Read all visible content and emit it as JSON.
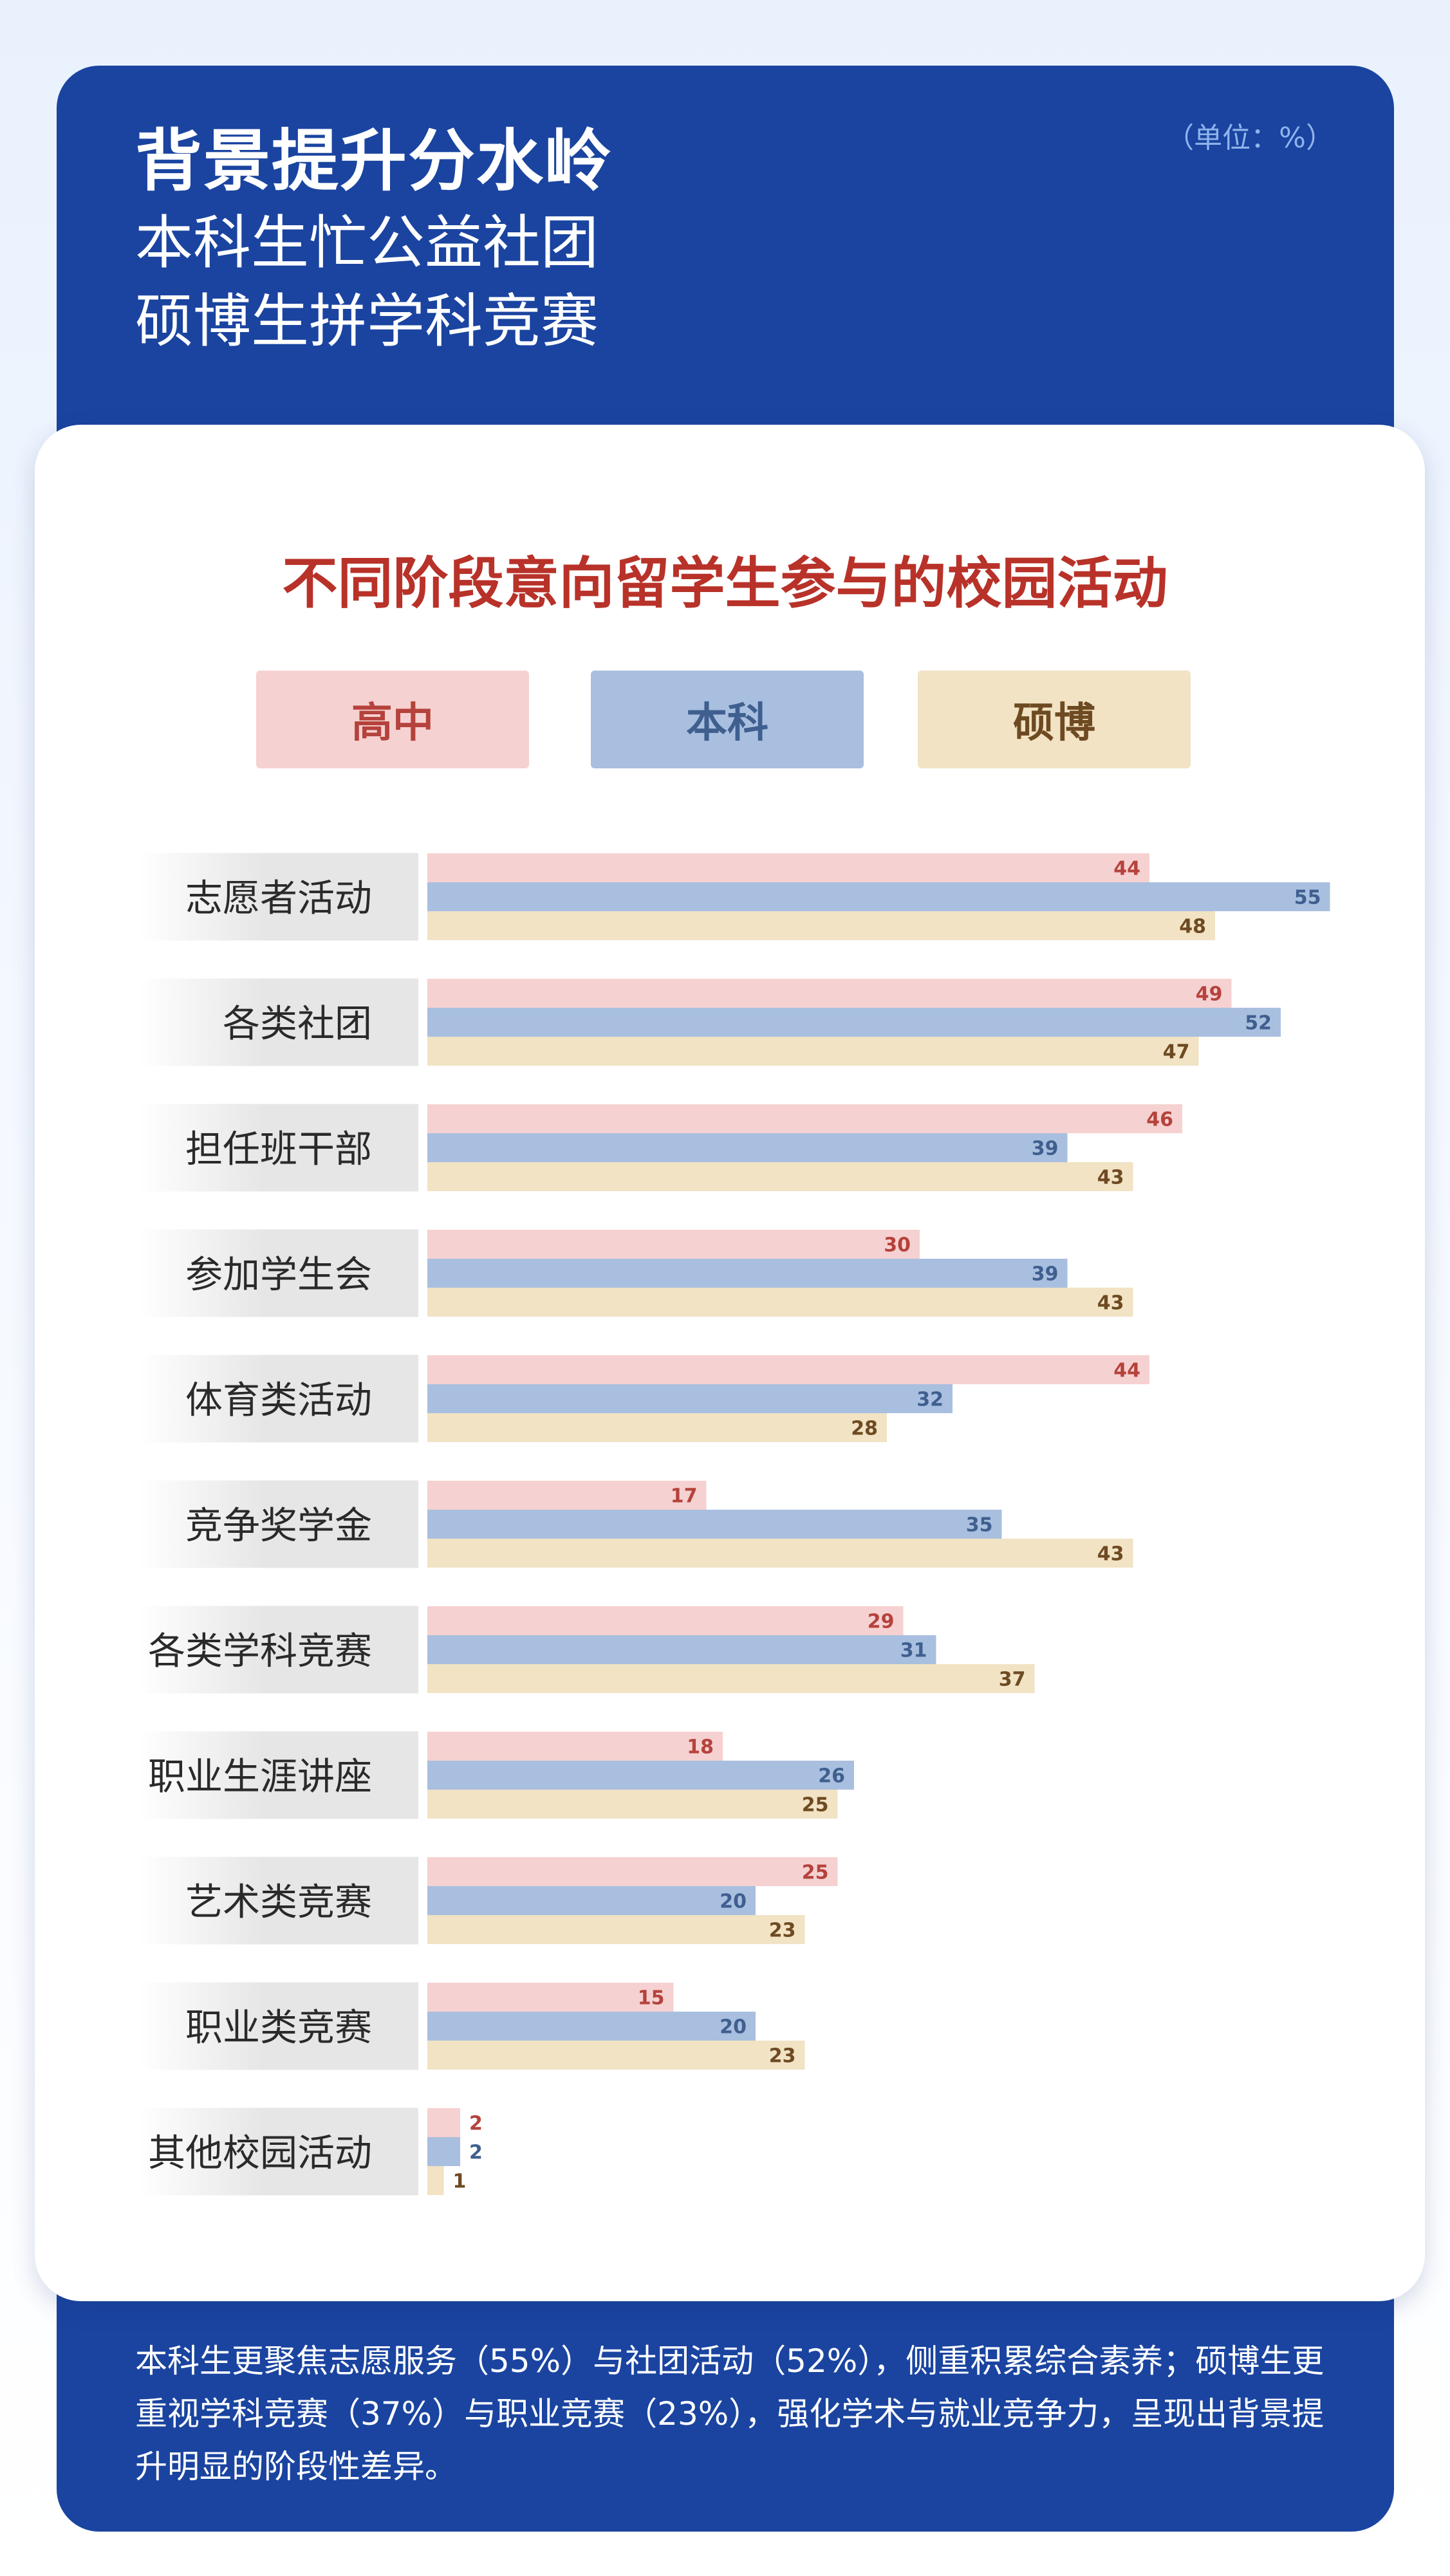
{
  "header": {
    "title": "背景提升分水岭",
    "subtitle_1": "本科生忙公益社团",
    "subtitle_2": "硕博生拼学科竞赛",
    "unit_note": "（单位：%）"
  },
  "footer": {
    "text": "本科生更聚焦志愿服务（55%）与社团活动（52%），侧重积累综合素养；硕博生更重视学科竞赛（37%）与职业竞赛（23%），强化学术与就业竞争力，呈现出背景提升明显的阶段性差异。"
  },
  "colors": {
    "brand_blue": "#1a44a0",
    "title_red": "#b83229"
  },
  "chart_data": {
    "type": "bar",
    "orientation": "horizontal",
    "title": "不同阶段意向留学生参与的校园活动",
    "xlim": [
      0,
      55
    ],
    "legend_position": "top",
    "categories": [
      "志愿者活动",
      "各类社团",
      "担任班干部",
      "参加学生会",
      "体育类活动",
      "竞争奖学金",
      "各类学科竞赛",
      "职业生涯讲座",
      "艺术类竞赛",
      "职业类竞赛",
      "其他校园活动"
    ],
    "series": [
      {
        "name": "高中",
        "color": "#f6d1d1",
        "label_color": "#b5423c",
        "values": [
          44,
          49,
          46,
          30,
          44,
          17,
          29,
          18,
          25,
          15,
          2
        ]
      },
      {
        "name": "本科",
        "color": "#a9bfdf",
        "label_color": "#3f5f8f",
        "values": [
          55,
          52,
          39,
          39,
          32,
          35,
          31,
          26,
          20,
          20,
          2
        ]
      },
      {
        "name": "硕博",
        "color": "#f1e3c3",
        "label_color": "#6e4a22",
        "values": [
          48,
          47,
          43,
          43,
          28,
          43,
          37,
          25,
          23,
          23,
          1
        ]
      }
    ]
  }
}
